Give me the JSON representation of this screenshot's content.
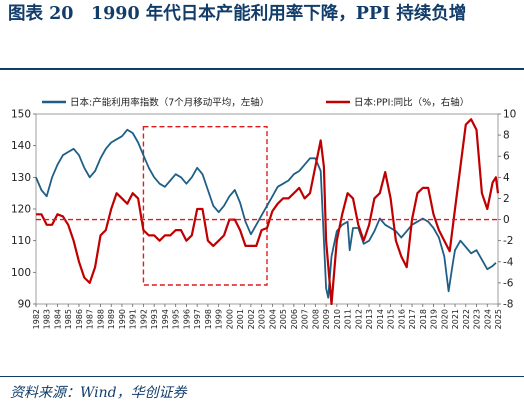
{
  "header": {
    "title": "图表 20　1990 年代日本产能利用率下降，PPI 持续负增"
  },
  "footer": {
    "source": "资料来源：Wind，华创证券"
  },
  "chart_data": {
    "type": "line",
    "title": "",
    "x_range": [
      1982,
      2025
    ],
    "x_ticks": [
      "1982",
      "1983",
      "1984",
      "1985",
      "1986",
      "1987",
      "1988",
      "1989",
      "1990",
      "1991",
      "1992",
      "1993",
      "1994",
      "1995",
      "1996",
      "1997",
      "1998",
      "1999",
      "2000",
      "2001",
      "2002",
      "2003",
      "2004",
      "2005",
      "2006",
      "2007",
      "2008",
      "2009",
      "2010",
      "2011",
      "2012",
      "2013",
      "2014",
      "2015",
      "2016",
      "2017",
      "2018",
      "2019",
      "2020",
      "2021",
      "2022",
      "2023",
      "2024",
      "2025"
    ],
    "y_left": {
      "min": 90,
      "max": 150,
      "ticks": [
        "90",
        "100",
        "110",
        "120",
        "130",
        "140",
        "150"
      ]
    },
    "y_right": {
      "min": -8,
      "max": 10,
      "ticks": [
        "-8",
        "-6",
        "-4",
        "-2",
        "0",
        "2",
        "4",
        "6",
        "8",
        "10"
      ]
    },
    "reference_line": {
      "axis": "right",
      "value": 0,
      "color": "#e31a1c"
    },
    "highlight_box": {
      "x_range": [
        1992.0,
        2003.5
      ],
      "y_left_range": [
        96,
        146
      ],
      "color": "#e31a1c"
    },
    "legend_position": "top",
    "series": [
      {
        "name": "日本:产能利用率指数（7个月移动平均，左轴）",
        "axis": "left",
        "color": "#1f5f86",
        "points": [
          [
            1982.0,
            130
          ],
          [
            1982.5,
            126
          ],
          [
            1983.0,
            124
          ],
          [
            1983.5,
            130
          ],
          [
            1984.0,
            134
          ],
          [
            1984.5,
            137
          ],
          [
            1985.0,
            138
          ],
          [
            1985.5,
            139
          ],
          [
            1986.0,
            137
          ],
          [
            1986.5,
            133
          ],
          [
            1987.0,
            130
          ],
          [
            1987.5,
            132
          ],
          [
            1988.0,
            136
          ],
          [
            1988.5,
            139
          ],
          [
            1989.0,
            141
          ],
          [
            1989.5,
            142
          ],
          [
            1990.0,
            143
          ],
          [
            1990.5,
            145
          ],
          [
            1991.0,
            144
          ],
          [
            1991.5,
            141
          ],
          [
            1992.0,
            137
          ],
          [
            1992.5,
            133
          ],
          [
            1993.0,
            130
          ],
          [
            1993.5,
            128
          ],
          [
            1994.0,
            127
          ],
          [
            1994.5,
            129
          ],
          [
            1995.0,
            131
          ],
          [
            1995.5,
            130
          ],
          [
            1996.0,
            128
          ],
          [
            1996.5,
            130
          ],
          [
            1997.0,
            133
          ],
          [
            1997.5,
            131
          ],
          [
            1998.0,
            126
          ],
          [
            1998.5,
            121
          ],
          [
            1999.0,
            119
          ],
          [
            1999.5,
            121
          ],
          [
            2000.0,
            124
          ],
          [
            2000.5,
            126
          ],
          [
            2001.0,
            122
          ],
          [
            2001.5,
            116
          ],
          [
            2002.0,
            112
          ],
          [
            2002.5,
            115
          ],
          [
            2003.0,
            118
          ],
          [
            2003.5,
            121
          ],
          [
            2004.0,
            124
          ],
          [
            2004.5,
            127
          ],
          [
            2005.0,
            128
          ],
          [
            2005.5,
            129
          ],
          [
            2006.0,
            131
          ],
          [
            2006.5,
            132
          ],
          [
            2007.0,
            134
          ],
          [
            2007.5,
            136
          ],
          [
            2008.0,
            136
          ],
          [
            2008.5,
            132
          ],
          [
            2009.0,
            95
          ],
          [
            2009.2,
            92
          ],
          [
            2009.5,
            105
          ],
          [
            2010.0,
            113
          ],
          [
            2010.5,
            115
          ],
          [
            2011.0,
            116
          ],
          [
            2011.2,
            107
          ],
          [
            2011.5,
            114
          ],
          [
            2012.0,
            114
          ],
          [
            2012.5,
            109
          ],
          [
            2013.0,
            110
          ],
          [
            2013.5,
            113
          ],
          [
            2014.0,
            117
          ],
          [
            2014.5,
            115
          ],
          [
            2015.0,
            114
          ],
          [
            2015.5,
            113
          ],
          [
            2016.0,
            111
          ],
          [
            2016.5,
            113
          ],
          [
            2017.0,
            115
          ],
          [
            2017.5,
            116
          ],
          [
            2018.0,
            117
          ],
          [
            2018.5,
            116
          ],
          [
            2019.0,
            114
          ],
          [
            2019.5,
            111
          ],
          [
            2020.0,
            105
          ],
          [
            2020.4,
            94
          ],
          [
            2020.8,
            103
          ],
          [
            2021.0,
            107
          ],
          [
            2021.5,
            110
          ],
          [
            2022.0,
            108
          ],
          [
            2022.5,
            106
          ],
          [
            2023.0,
            107
          ],
          [
            2023.5,
            104
          ],
          [
            2024.0,
            101
          ],
          [
            2024.5,
            102
          ],
          [
            2024.8,
            103
          ]
        ]
      },
      {
        "name": "日本:PPI:同比（%，右轴）",
        "axis": "right",
        "color": "#c00000",
        "points": [
          [
            1982.0,
            0.5
          ],
          [
            1982.5,
            0.5
          ],
          [
            1983.0,
            -0.5
          ],
          [
            1983.5,
            -0.5
          ],
          [
            1984.0,
            0.5
          ],
          [
            1984.5,
            0.3
          ],
          [
            1985.0,
            -0.5
          ],
          [
            1985.5,
            -2.0
          ],
          [
            1986.0,
            -4.0
          ],
          [
            1986.5,
            -5.5
          ],
          [
            1987.0,
            -6.0
          ],
          [
            1987.5,
            -4.5
          ],
          [
            1988.0,
            -1.5
          ],
          [
            1988.5,
            -1.0
          ],
          [
            1989.0,
            1.0
          ],
          [
            1989.5,
            2.5
          ],
          [
            1990.0,
            2.0
          ],
          [
            1990.5,
            1.5
          ],
          [
            1991.0,
            2.5
          ],
          [
            1991.5,
            2.0
          ],
          [
            1992.0,
            -1.0
          ],
          [
            1992.5,
            -1.5
          ],
          [
            1993.0,
            -1.5
          ],
          [
            1993.5,
            -2.0
          ],
          [
            1994.0,
            -1.5
          ],
          [
            1994.5,
            -1.5
          ],
          [
            1995.0,
            -1.0
          ],
          [
            1995.5,
            -1.0
          ],
          [
            1996.0,
            -2.0
          ],
          [
            1996.5,
            -1.5
          ],
          [
            1997.0,
            1.0
          ],
          [
            1997.5,
            1.0
          ],
          [
            1998.0,
            -2.0
          ],
          [
            1998.5,
            -2.5
          ],
          [
            1999.0,
            -2.0
          ],
          [
            1999.5,
            -1.5
          ],
          [
            2000.0,
            0.0
          ],
          [
            2000.5,
            0.0
          ],
          [
            2001.0,
            -1.0
          ],
          [
            2001.5,
            -2.5
          ],
          [
            2002.0,
            -2.5
          ],
          [
            2002.5,
            -2.5
          ],
          [
            2003.0,
            -1.0
          ],
          [
            2003.5,
            -0.8
          ],
          [
            2004.0,
            0.8
          ],
          [
            2004.5,
            1.5
          ],
          [
            2005.0,
            2.0
          ],
          [
            2005.5,
            2.0
          ],
          [
            2006.0,
            2.5
          ],
          [
            2006.5,
            3.0
          ],
          [
            2007.0,
            2.0
          ],
          [
            2007.5,
            2.5
          ],
          [
            2008.0,
            5.0
          ],
          [
            2008.5,
            7.5
          ],
          [
            2008.8,
            5.0
          ],
          [
            2009.0,
            -2.0
          ],
          [
            2009.5,
            -8.0
          ],
          [
            2010.0,
            -2.0
          ],
          [
            2010.5,
            0.5
          ],
          [
            2011.0,
            2.5
          ],
          [
            2011.5,
            2.0
          ],
          [
            2012.0,
            -0.5
          ],
          [
            2012.5,
            -2.0
          ],
          [
            2013.0,
            -0.5
          ],
          [
            2013.5,
            2.0
          ],
          [
            2014.0,
            2.5
          ],
          [
            2014.5,
            4.5
          ],
          [
            2015.0,
            2.0
          ],
          [
            2015.5,
            -2.0
          ],
          [
            2016.0,
            -3.5
          ],
          [
            2016.5,
            -4.5
          ],
          [
            2017.0,
            0.0
          ],
          [
            2017.5,
            2.5
          ],
          [
            2018.0,
            3.0
          ],
          [
            2018.5,
            3.0
          ],
          [
            2019.0,
            0.5
          ],
          [
            2019.5,
            -1.0
          ],
          [
            2020.0,
            -2.0
          ],
          [
            2020.5,
            -3.0
          ],
          [
            2021.0,
            1.0
          ],
          [
            2021.5,
            5.0
          ],
          [
            2022.0,
            9.0
          ],
          [
            2022.5,
            9.5
          ],
          [
            2023.0,
            8.5
          ],
          [
            2023.5,
            2.5
          ],
          [
            2024.0,
            1.0
          ],
          [
            2024.5,
            3.5
          ],
          [
            2024.8,
            4.0
          ],
          [
            2025.0,
            2.5
          ]
        ]
      }
    ]
  }
}
